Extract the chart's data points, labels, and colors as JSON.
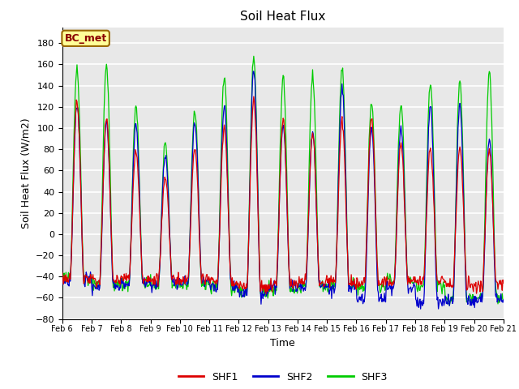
{
  "title": "Soil Heat Flux",
  "ylabel": "Soil Heat Flux (W/m2)",
  "xlabel": "Time",
  "ylim": [
    -80,
    195
  ],
  "yticks": [
    -80,
    -60,
    -40,
    -20,
    0,
    20,
    40,
    60,
    80,
    100,
    120,
    140,
    160,
    180
  ],
  "n_days": 15,
  "pts_per_day": 48,
  "x_tick_labels": [
    "Feb 6",
    "Feb 7",
    "Feb 8",
    "Feb 9",
    "Feb 10",
    "Feb 11",
    "Feb 12",
    "Feb 13",
    "Feb 14",
    "Feb 15",
    "Feb 16",
    "Feb 17",
    "Feb 18",
    "Feb 19",
    "Feb 20",
    "Feb 21"
  ],
  "colors": {
    "SHF1": "#dd0000",
    "SHF2": "#0000cc",
    "SHF3": "#00cc00"
  },
  "label_box_text": "BC_met",
  "label_box_color": "#ffff99",
  "label_box_edge": "#996600",
  "bg_color": "#e8e8e8",
  "grid_color": "#ffffff",
  "title_fontsize": 11,
  "axis_fontsize": 9,
  "tick_fontsize": 8,
  "legend_fontsize": 9,
  "day_peaks_shf3": [
    155,
    160,
    121,
    85,
    118,
    150,
    168,
    148,
    148,
    157,
    124,
    123,
    143,
    145,
    153
  ],
  "day_peaks_shf1": [
    125,
    108,
    78,
    54,
    81,
    100,
    127,
    108,
    94,
    107,
    110,
    86,
    81,
    81,
    80
  ],
  "day_peaks_shf2": [
    123,
    106,
    103,
    75,
    105,
    119,
    153,
    105,
    96,
    138,
    100,
    101,
    122,
    122,
    90
  ],
  "night_base_shf1": [
    -42,
    -44,
    -42,
    -43,
    -43,
    -45,
    -50,
    -47,
    -44,
    -45,
    -45,
    -44,
    -44,
    -47,
    -48
  ],
  "night_base_shf2": [
    -43,
    -49,
    -46,
    -47,
    -45,
    -50,
    -55,
    -50,
    -50,
    -50,
    -62,
    -50,
    -65,
    -62,
    -62
  ],
  "night_base_shf3": [
    -42,
    -48,
    -48,
    -48,
    -48,
    -50,
    -55,
    -52,
    -50,
    -48,
    -50,
    -44,
    -48,
    -62,
    -60
  ]
}
